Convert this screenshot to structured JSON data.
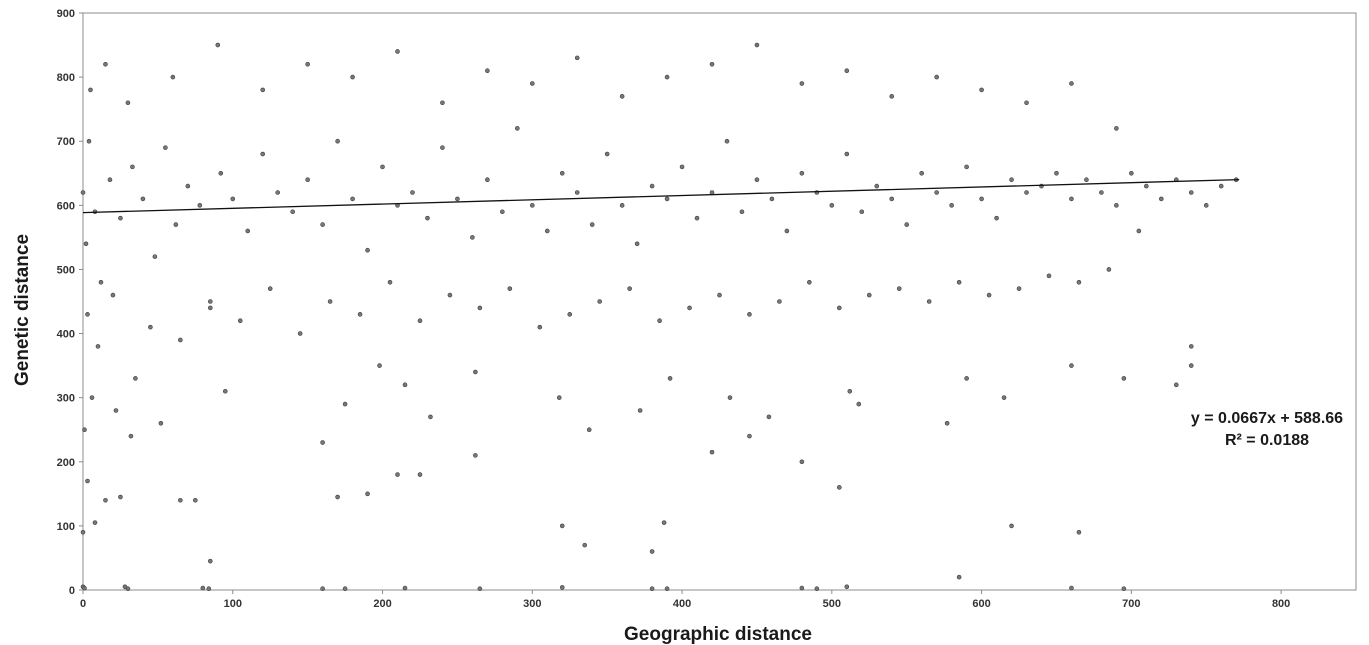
{
  "chart_data": {
    "type": "scatter",
    "title": "",
    "xlabel": "Geographic distance",
    "ylabel": "Genetic distance",
    "xlim": [
      0,
      850
    ],
    "ylim": [
      0,
      900
    ],
    "x_ticks": [
      0,
      100,
      200,
      300,
      400,
      500,
      600,
      700,
      800
    ],
    "y_ticks": [
      0,
      100,
      200,
      300,
      400,
      500,
      600,
      700,
      800,
      900
    ],
    "grid": false,
    "legend": "none",
    "point_color": "#777777",
    "point_edge_color": "#3d3d3d",
    "trendline": {
      "type": "linear",
      "slope": 0.0667,
      "intercept": 588.66,
      "x_range": [
        0,
        772
      ],
      "color": "#111111"
    },
    "annotations": {
      "equation": "y = 0.0667x + 588.66",
      "r_squared": "R² = 0.0188"
    },
    "series": [
      {
        "x": [
          0,
          2,
          4,
          8,
          12,
          18,
          25,
          33,
          40,
          48,
          55,
          62,
          70,
          78,
          85,
          92,
          100,
          110,
          120,
          130,
          140,
          150,
          160,
          170,
          180,
          190,
          200,
          210,
          220,
          230,
          240,
          250,
          260,
          270,
          280,
          290,
          300,
          310,
          320,
          330,
          340,
          350,
          360,
          370,
          380,
          390,
          400,
          410,
          420,
          430,
          440,
          450,
          460,
          470,
          480,
          490,
          500,
          510,
          520,
          530,
          540,
          550,
          560,
          570,
          580,
          590,
          600,
          610,
          620,
          630,
          640,
          650,
          660,
          670,
          680,
          690,
          700,
          710,
          720,
          730,
          740,
          750,
          760,
          770,
          5,
          15,
          30,
          60,
          90,
          120,
          150,
          180,
          210,
          240,
          270,
          300,
          330,
          360,
          390,
          420,
          450,
          480,
          510,
          540,
          570,
          600,
          630,
          660,
          690,
          3,
          10,
          20,
          45,
          65,
          85,
          105,
          125,
          145,
          165,
          185,
          205,
          225,
          245,
          265,
          285,
          305,
          325,
          345,
          365,
          385,
          405,
          425,
          445,
          465,
          485,
          505,
          525,
          545,
          565,
          585,
          605,
          625,
          645,
          665,
          685,
          705,
          1,
          6,
          22,
          35,
          52,
          95,
          160,
          175,
          198,
          215,
          232,
          262,
          318,
          338,
          372,
          392,
          432,
          458,
          512,
          518,
          577,
          590,
          615,
          660,
          695,
          730,
          740,
          0,
          3,
          8,
          15,
          25,
          32,
          65,
          75,
          85,
          170,
          190,
          210,
          225,
          262,
          320,
          335,
          380,
          388,
          420,
          445,
          480,
          505,
          585,
          620,
          665,
          740,
          0,
          1,
          30,
          80,
          84,
          28,
          160,
          175,
          215,
          265,
          320,
          380,
          390,
          480,
          490,
          510,
          660,
          695
        ],
        "y": [
          620,
          540,
          700,
          590,
          480,
          640,
          580,
          660,
          610,
          520,
          690,
          570,
          630,
          600,
          450,
          650,
          610,
          560,
          680,
          620,
          590,
          640,
          570,
          700,
          610,
          530,
          660,
          600,
          620,
          580,
          690,
          610,
          550,
          640,
          590,
          720,
          600,
          560,
          650,
          620,
          570,
          680,
          600,
          540,
          630,
          610,
          660,
          580,
          620,
          700,
          590,
          640,
          610,
          560,
          650,
          620,
          600,
          680,
          590,
          630,
          610,
          570,
          650,
          620,
          600,
          660,
          610,
          580,
          640,
          620,
          630,
          650,
          610,
          640,
          620,
          600,
          650,
          630,
          610,
          640,
          620,
          600,
          630,
          640,
          780,
          820,
          760,
          800,
          850,
          780,
          820,
          800,
          840,
          760,
          810,
          790,
          830,
          770,
          800,
          820,
          850,
          790,
          810,
          770,
          800,
          780,
          760,
          790,
          720,
          430,
          380,
          460,
          410,
          390,
          440,
          420,
          470,
          400,
          450,
          430,
          480,
          420,
          460,
          440,
          470,
          410,
          430,
          450,
          470,
          420,
          440,
          460,
          430,
          450,
          480,
          440,
          460,
          470,
          450,
          480,
          460,
          470,
          490,
          480,
          500,
          560,
          250,
          300,
          280,
          330,
          260,
          310,
          230,
          290,
          350,
          320,
          270,
          340,
          300,
          250,
          280,
          330,
          300,
          270,
          310,
          290,
          260,
          330,
          300,
          350,
          330,
          320,
          350,
          90,
          170,
          105,
          140,
          145,
          240,
          140,
          140,
          45,
          145,
          150,
          180,
          180,
          210,
          100,
          70,
          60,
          105,
          215,
          240,
          200,
          160,
          20,
          100,
          90,
          380,
          5,
          3,
          2,
          3,
          2,
          5,
          2,
          2,
          3,
          2,
          4,
          2,
          2,
          3,
          2,
          5,
          3,
          2
        ]
      }
    ]
  }
}
